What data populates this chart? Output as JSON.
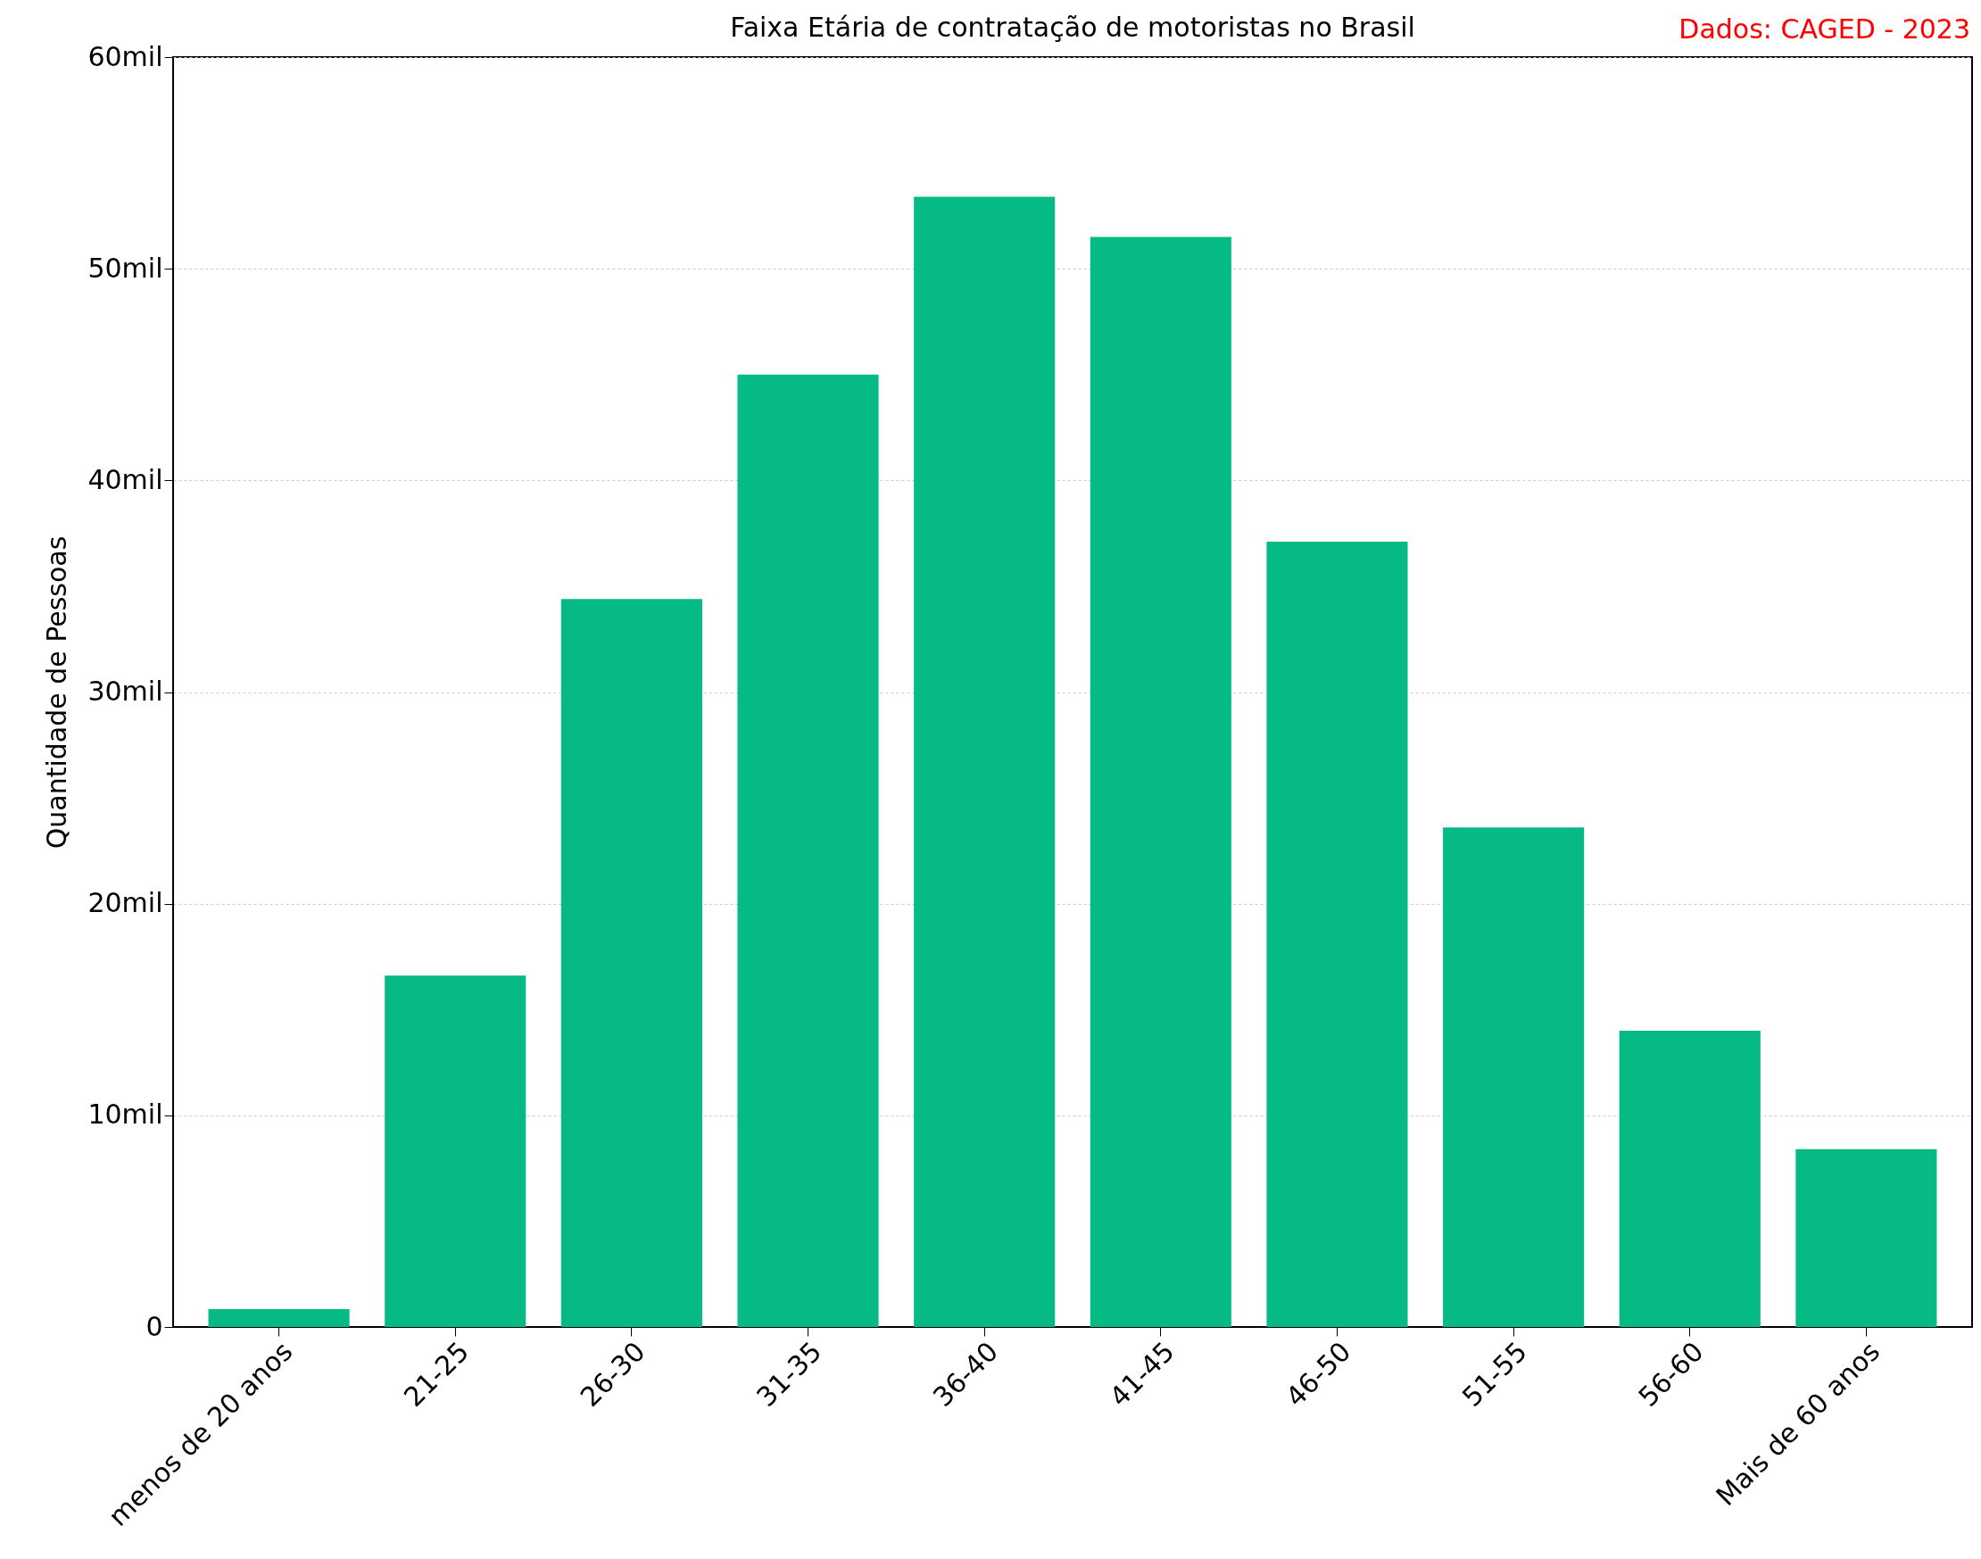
{
  "chart_data": {
    "type": "bar",
    "title": "Faixa Etária de contratação de motoristas no Brasil",
    "ylabel": "Quantidade de Pessoas",
    "annotations": [
      "Dados: CAGED - 2023"
    ],
    "categories": [
      "menos de 20 anos",
      "21-25",
      "26-30",
      "31-35",
      "36-40",
      "41-45",
      "46-50",
      "51-55",
      "56-60",
      "Mais de 60 anos"
    ],
    "values": [
      0.84,
      16.6,
      34.4,
      45.0,
      53.4,
      51.5,
      37.1,
      23.6,
      14.0,
      8.4
    ],
    "color": "#05ba85",
    "ylim": [
      0,
      60
    ],
    "yticks": [
      0,
      {
        "value": 10,
        "label": "10mil"
      },
      {
        "value": 20,
        "label": "20mil"
      },
      {
        "value": 30,
        "label": "30mil"
      },
      {
        "value": 40,
        "label": "40mil"
      },
      {
        "value": 50,
        "label": "50mil"
      },
      {
        "value": 60,
        "label": "60mil"
      }
    ],
    "grid": "y"
  }
}
